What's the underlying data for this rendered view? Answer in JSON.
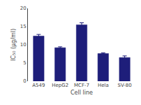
{
  "chart_data": {
    "type": "bar",
    "categories": [
      "A549",
      "HepG2",
      "MCF-7",
      "Hela",
      "SV-80"
    ],
    "values": [
      12.4,
      9.2,
      15.5,
      7.6,
      6.5
    ],
    "errors": [
      0.45,
      0.25,
      0.55,
      0.18,
      0.45
    ],
    "color": "#1e1e7a",
    "xlabel": "Cell line",
    "ylabel": "IC₅₀ (µg/ml)",
    "ylim": [
      0,
      20
    ],
    "yticks": [
      0,
      5,
      10,
      15,
      20
    ],
    "grid": false
  }
}
